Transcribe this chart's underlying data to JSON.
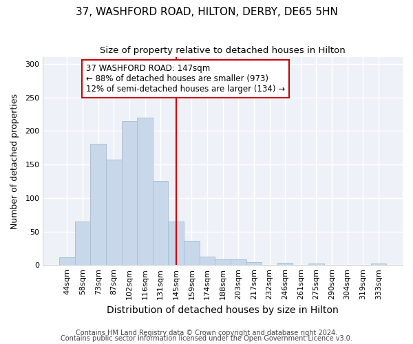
{
  "title": "37, WASHFORD ROAD, HILTON, DERBY, DE65 5HN",
  "subtitle": "Size of property relative to detached houses in Hilton",
  "xlabel": "Distribution of detached houses by size in Hilton",
  "ylabel": "Number of detached properties",
  "bar_labels": [
    "44sqm",
    "58sqm",
    "73sqm",
    "87sqm",
    "102sqm",
    "116sqm",
    "131sqm",
    "145sqm",
    "159sqm",
    "174sqm",
    "188sqm",
    "203sqm",
    "217sqm",
    "232sqm",
    "246sqm",
    "261sqm",
    "275sqm",
    "290sqm",
    "304sqm",
    "319sqm",
    "333sqm"
  ],
  "bar_heights": [
    12,
    65,
    181,
    157,
    215,
    220,
    125,
    65,
    36,
    13,
    9,
    9,
    4,
    0,
    3,
    0,
    2,
    0,
    0,
    0,
    2
  ],
  "bar_color": "#c8d8ea",
  "bar_edge_color": "#aabfd4",
  "vline_x_idx": 7,
  "vline_color": "#cc0000",
  "annotation_line1": "37 WASHFORD ROAD: 147sqm",
  "annotation_line2": "← 88% of detached houses are smaller (973)",
  "annotation_line3": "12% of semi-detached houses are larger (134) →",
  "annotation_box_color": "#ffffff",
  "annotation_box_edge": "#cc0000",
  "ylim": [
    0,
    310
  ],
  "yticks": [
    0,
    50,
    100,
    150,
    200,
    250,
    300
  ],
  "footer1": "Contains HM Land Registry data © Crown copyright and database right 2024.",
  "footer2": "Contains public sector information licensed under the Open Government Licence v3.0.",
  "title_fontsize": 11,
  "subtitle_fontsize": 9.5,
  "xlabel_fontsize": 10,
  "ylabel_fontsize": 9,
  "tick_fontsize": 8,
  "footer_fontsize": 7,
  "annotation_fontsize": 8.5,
  "background_color": "#ffffff",
  "plot_bg_color": "#eef2f8",
  "grid_color": "#ffffff"
}
